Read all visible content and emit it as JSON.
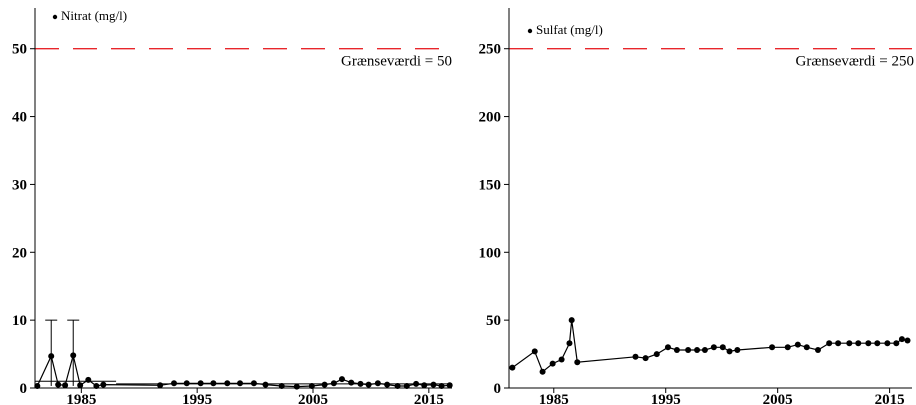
{
  "chart_data": [
    {
      "type": "line",
      "legend": "Nitrat (mg/l)",
      "threshold": {
        "value": 50,
        "label": "Grænseværdi = 50",
        "color": "#e8262b"
      },
      "xlim": [
        1981,
        2017
      ],
      "ylim": [
        0,
        56
      ],
      "xticks": [
        1985,
        1995,
        2005,
        2015
      ],
      "xtick_labels": [
        "1985",
        "1995",
        "2005",
        "2015"
      ],
      "yticks": [
        0,
        10,
        20,
        30,
        40,
        50
      ],
      "ytick_labels": [
        "0",
        "10",
        "20",
        "30",
        "40",
        "50"
      ],
      "series": [
        {
          "x": [
            1981.2,
            1982.4,
            1983.0,
            1983.6,
            1984.3,
            1984.9,
            1985.6,
            1986.3,
            1986.9,
            1991.8,
            1993.0,
            1994.1,
            1995.3,
            1996.4,
            1997.6,
            1998.7,
            1999.9,
            2000.9,
            2002.3,
            2003.6,
            2004.9,
            2006.0,
            2006.8,
            2007.5,
            2008.3,
            2009.1,
            2009.8,
            2010.6,
            2011.4,
            2012.3,
            2013.1,
            2013.9,
            2014.6,
            2015.4,
            2016.1,
            2016.8
          ],
          "y": [
            0.3,
            4.7,
            0.5,
            0.4,
            4.8,
            0.4,
            1.2,
            0.3,
            0.5,
            0.4,
            0.7,
            0.7,
            0.7,
            0.7,
            0.7,
            0.7,
            0.7,
            0.5,
            0.3,
            0.2,
            0.3,
            0.5,
            0.7,
            1.3,
            0.8,
            0.6,
            0.5,
            0.7,
            0.5,
            0.3,
            0.3,
            0.6,
            0.4,
            0.5,
            0.3,
            0.4
          ]
        }
      ],
      "error_bars": [
        {
          "x": 1982.4,
          "low": 0.3,
          "high": 10
        },
        {
          "x": 1984.3,
          "low": 0.3,
          "high": 10
        }
      ]
    },
    {
      "type": "line",
      "legend": "Sulfat (mg/l)",
      "threshold": {
        "value": 250,
        "label": "Grænseværdi = 250",
        "color": "#e8262b"
      },
      "xlim": [
        1981,
        2017
      ],
      "ylim": [
        0,
        280
      ],
      "xticks": [
        1985,
        1995,
        2005,
        2015
      ],
      "xtick_labels": [
        "1985",
        "1995",
        "2005",
        "2015"
      ],
      "yticks": [
        0,
        50,
        100,
        150,
        200,
        250
      ],
      "ytick_labels": [
        "0",
        "50",
        "100",
        "150",
        "200",
        "250"
      ],
      "series": [
        {
          "x": [
            1981.3,
            1983.3,
            1984.0,
            1984.9,
            1985.7,
            1986.4,
            1986.6,
            1987.1,
            1992.3,
            1993.2,
            1994.2,
            1995.2,
            1996.0,
            1997.0,
            1997.8,
            1998.5,
            1999.3,
            2000.1,
            2000.7,
            2001.4,
            2004.5,
            2005.9,
            2006.8,
            2007.6,
            2008.6,
            2009.6,
            2010.4,
            2011.4,
            2012.2,
            2013.1,
            2013.9,
            2014.8,
            2015.6,
            2016.1,
            2016.6
          ],
          "y": [
            15,
            27,
            12,
            18,
            21,
            33,
            50,
            19,
            23,
            22,
            25,
            30,
            28,
            28,
            28,
            28,
            30,
            30,
            27,
            28,
            30,
            30,
            32,
            30,
            28,
            33,
            33,
            33,
            33,
            33,
            33,
            33,
            33,
            36,
            35
          ]
        }
      ]
    }
  ]
}
